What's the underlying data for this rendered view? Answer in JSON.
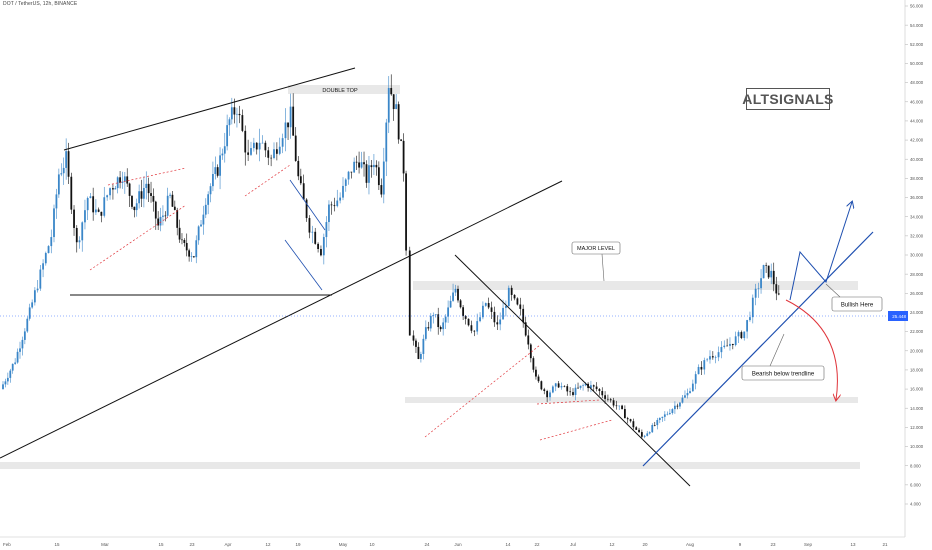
{
  "symbol_line": "DOT / TetherUS, 12h, BINANCE",
  "brand": "ALTSIGNALS",
  "price_tag": {
    "value": "25.448",
    "color": "#2962ff"
  },
  "colors": {
    "up": "#3a86c8",
    "down": "#111111",
    "trend_blue": "#1e4fb0",
    "arrow_red": "#e0353b",
    "zone": "#e8e8e8"
  },
  "annotations": {
    "double_top": "DOUBLE TOP",
    "major_level": "MAJOR LEVEL",
    "bullish": "Bullish Here",
    "bearish": "Bearish below trendline"
  },
  "chart_data": {
    "type": "candlestick",
    "title": "DOT / TetherUS, 12h, BINANCE",
    "yaxis": {
      "range": [
        3.0,
        57.0
      ],
      "ticks": [
        "56.000",
        "54.000",
        "52.000",
        "50.000",
        "48.000",
        "46.000",
        "44.000",
        "42.000",
        "40.000",
        "38.000",
        "36.000",
        "34.000",
        "32.000",
        "30.000",
        "28.000",
        "26.000",
        "24.000",
        "22.000",
        "20.000",
        "18.000",
        "16.000",
        "14.000",
        "12.000",
        "10.000",
        "8.000",
        "6.000",
        "4.000"
      ]
    },
    "xaxis": {
      "ticks": [
        "Feb",
        "15",
        "Mar",
        "15",
        "23",
        "Apr",
        "12",
        "19",
        "May",
        "10",
        "24",
        "Jun",
        "14",
        "22",
        "Jul",
        "12",
        "20",
        "Aug",
        "9",
        "23",
        "Sep",
        "13",
        "21"
      ]
    },
    "price_path": [
      [
        "Feb 1",
        16.0
      ],
      [
        "Feb 5",
        19.0
      ],
      [
        "Feb 9",
        24.0
      ],
      [
        "Feb 12",
        28.0
      ],
      [
        "Feb 15",
        32.0
      ],
      [
        "Feb 17",
        38.5
      ],
      [
        "Feb 19",
        40.0
      ],
      [
        "Feb 22",
        31.0
      ],
      [
        "Feb 25",
        36.0
      ],
      [
        "Feb 28",
        34.0
      ],
      [
        "Mar 3",
        37.0
      ],
      [
        "Mar 6",
        38.5
      ],
      [
        "Mar 9",
        35.0
      ],
      [
        "Mar 12",
        37.5
      ],
      [
        "Mar 15",
        33.0
      ],
      [
        "Mar 18",
        36.0
      ],
      [
        "Mar 21",
        31.0
      ],
      [
        "Mar 24",
        30.0
      ],
      [
        "Mar 27",
        36.0
      ],
      [
        "Mar 30",
        39.0
      ],
      [
        "Apr 2",
        44.0
      ],
      [
        "Apr 4",
        45.5
      ],
      [
        "Apr 7",
        40.0
      ],
      [
        "Apr 10",
        42.0
      ],
      [
        "Apr 13",
        40.0
      ],
      [
        "Apr 16",
        43.0
      ],
      [
        "Apr 18",
        44.5
      ],
      [
        "Apr 20",
        38.0
      ],
      [
        "Apr 23",
        33.0
      ],
      [
        "Apr 26",
        30.5
      ],
      [
        "Apr 28",
        35.0
      ],
      [
        "May 1",
        36.0
      ],
      [
        "May 4",
        39.0
      ],
      [
        "May 6",
        40.0
      ],
      [
        "May 8",
        38.0
      ],
      [
        "May 10",
        40.0
      ],
      [
        "May 12",
        37.0
      ],
      [
        "May 14",
        48.0
      ],
      [
        "May 16",
        45.0
      ],
      [
        "May 18",
        39.0
      ],
      [
        "May 19",
        31.0
      ],
      [
        "May 20",
        22.0
      ],
      [
        "May 22",
        19.0
      ],
      [
        "May 24",
        22.0
      ],
      [
        "May 26",
        24.0
      ],
      [
        "May 28",
        22.0
      ],
      [
        "Jun 1",
        26.5
      ],
      [
        "Jun 3",
        24.0
      ],
      [
        "Jun 6",
        22.0
      ],
      [
        "Jun 9",
        25.0
      ],
      [
        "Jun 12",
        22.5
      ],
      [
        "Jun 15",
        26.0
      ],
      [
        "Jun 18",
        24.0
      ],
      [
        "Jun 20",
        21.0
      ],
      [
        "Jun 22",
        17.0
      ],
      [
        "Jun 25",
        15.5
      ],
      [
        "Jun 28",
        16.5
      ],
      [
        "Jul 1",
        15.5
      ],
      [
        "Jul 5",
        16.5
      ],
      [
        "Jul 8",
        16.0
      ],
      [
        "Jul 11",
        15.0
      ],
      [
        "Jul 14",
        14.0
      ],
      [
        "Jul 17",
        12.5
      ],
      [
        "Jul 20",
        11.0
      ],
      [
        "Jul 24",
        12.5
      ],
      [
        "Jul 28",
        14.0
      ],
      [
        "Aug 1",
        15.5
      ],
      [
        "Aug 4",
        18.0
      ],
      [
        "Aug 7",
        19.5
      ],
      [
        "Aug 10",
        20.0
      ],
      [
        "Aug 13",
        21.0
      ],
      [
        "Aug 16",
        22.0
      ],
      [
        "Aug 19",
        26.0
      ],
      [
        "Aug 21",
        28.5
      ],
      [
        "Aug 23",
        28.0
      ],
      [
        "Aug 25",
        25.4
      ]
    ],
    "horizontal_levels": [
      {
        "label": "MAJOR LEVEL",
        "value": 28.6
      },
      {
        "label": "",
        "value": 17.0
      },
      {
        "label": "",
        "value": 10.3
      },
      {
        "label": "",
        "value": 27.5
      },
      {
        "label": "",
        "value": 48.0
      }
    ],
    "grid": false
  }
}
